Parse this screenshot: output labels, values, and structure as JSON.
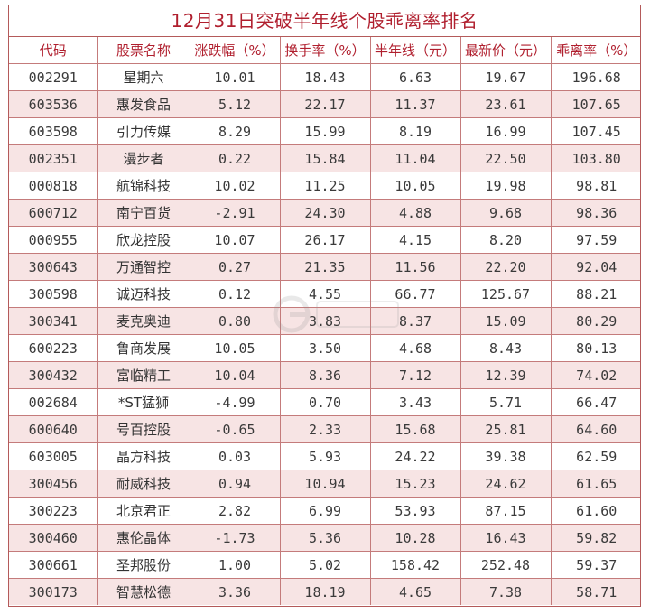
{
  "title": "12月31日突破半年线个股乖离率排名",
  "columns": [
    "代码",
    "股票名称",
    "涨跌幅（%）",
    "换手率（%）",
    "半年线（元）",
    "最新价（元）",
    "乖离率（%）"
  ],
  "rows": [
    [
      "002291",
      "星期六",
      "10.01",
      "18.43",
      "6.63",
      "19.67",
      "196.68"
    ],
    [
      "603536",
      "惠发食品",
      "5.12",
      "22.17",
      "11.37",
      "23.61",
      "107.65"
    ],
    [
      "603598",
      "引力传媒",
      "8.29",
      "15.99",
      "8.19",
      "16.99",
      "107.45"
    ],
    [
      "002351",
      "漫步者",
      "0.22",
      "15.84",
      "11.04",
      "22.50",
      "103.80"
    ],
    [
      "000818",
      "航锦科技",
      "10.02",
      "11.25",
      "10.05",
      "19.98",
      "98.81"
    ],
    [
      "600712",
      "南宁百货",
      "-2.91",
      "24.30",
      "4.88",
      "9.68",
      "98.36"
    ],
    [
      "000955",
      "欣龙控股",
      "10.07",
      "26.17",
      "4.15",
      "8.20",
      "97.59"
    ],
    [
      "300643",
      "万通智控",
      "0.27",
      "21.35",
      "11.56",
      "22.20",
      "92.04"
    ],
    [
      "300598",
      "诚迈科技",
      "0.12",
      "4.55",
      "66.77",
      "125.67",
      "88.21"
    ],
    [
      "300341",
      "麦克奥迪",
      "0.80",
      "3.83",
      "8.37",
      "15.09",
      "80.29"
    ],
    [
      "600223",
      "鲁商发展",
      "10.05",
      "3.50",
      "4.68",
      "8.43",
      "80.13"
    ],
    [
      "300432",
      "富临精工",
      "10.04",
      "8.36",
      "7.12",
      "12.39",
      "74.02"
    ],
    [
      "002684",
      "*ST猛狮",
      "-4.99",
      "0.70",
      "3.43",
      "5.71",
      "66.47"
    ],
    [
      "600640",
      "号百控股",
      "-0.65",
      "2.33",
      "15.68",
      "25.81",
      "64.60"
    ],
    [
      "603005",
      "晶方科技",
      "0.03",
      "5.93",
      "24.22",
      "39.38",
      "62.59"
    ],
    [
      "300456",
      "耐威科技",
      "0.94",
      "10.94",
      "15.23",
      "24.62",
      "61.65"
    ],
    [
      "300223",
      "北京君正",
      "2.82",
      "6.99",
      "53.93",
      "87.15",
      "61.60"
    ],
    [
      "300460",
      "惠伦晶体",
      "-1.73",
      "5.36",
      "10.28",
      "16.43",
      "59.82"
    ],
    [
      "300661",
      "圣邦股份",
      "1.00",
      "5.02",
      "158.42",
      "252.48",
      "59.37"
    ],
    [
      "300173",
      "智慧松德",
      "3.36",
      "18.19",
      "4.65",
      "7.38",
      "58.71"
    ]
  ],
  "colors": {
    "title": "#b01f2e",
    "border": "#c47b7b",
    "row_alt": "#f7e4e4"
  },
  "watermark_icon": "logo-icon"
}
